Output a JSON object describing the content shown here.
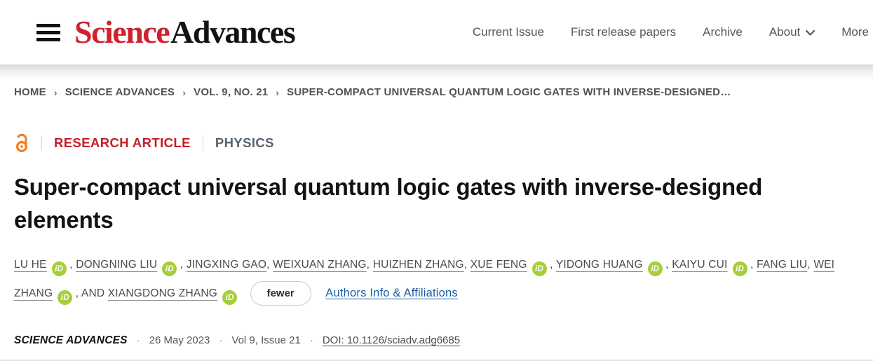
{
  "header": {
    "logo": {
      "science": "Science",
      "advances": "Advances"
    },
    "nav_items": [
      {
        "label": "Current Issue",
        "chevron": false
      },
      {
        "label": "First release papers",
        "chevron": false
      },
      {
        "label": "Archive",
        "chevron": false
      },
      {
        "label": "About",
        "chevron": true
      },
      {
        "label": "More",
        "chevron": false
      }
    ]
  },
  "breadcrumb": {
    "separator": "›",
    "items": [
      "HOME",
      "SCIENCE ADVANCES",
      "VOL. 9, NO. 21",
      "SUPER-COMPACT UNIVERSAL QUANTUM LOGIC GATES WITH INVERSE-DESIGNED…"
    ]
  },
  "article": {
    "type_label": "RESEARCH ARTICLE",
    "subject_label": "PHYSICS",
    "title": "Super-compact universal quantum logic gates with inverse-designed elements",
    "and_label": "AND",
    "orcid_icon_text": "iD",
    "authors": [
      {
        "name": "LU HE",
        "orcid": true
      },
      {
        "name": "DONGNING LIU",
        "orcid": true
      },
      {
        "name": "JINGXING GAO",
        "orcid": false
      },
      {
        "name": "WEIXUAN ZHANG",
        "orcid": false
      },
      {
        "name": "HUIZHEN ZHANG",
        "orcid": false
      },
      {
        "name": "XUE FENG",
        "orcid": true
      },
      {
        "name": "YIDONG HUANG",
        "orcid": true
      },
      {
        "name": "KAIYU CUI",
        "orcid": true
      },
      {
        "name": "FANG LIU",
        "orcid": false
      },
      {
        "name": "WEI ZHANG",
        "orcid": true
      },
      {
        "name": "XIANGDONG ZHANG",
        "orcid": true
      }
    ],
    "fewer_label": "fewer",
    "affiliations_link": "Authors Info & Affiliations"
  },
  "citation": {
    "journal": "SCIENCE ADVANCES",
    "separator": "·",
    "date": "26 May 2023",
    "issue": "Vol 9, Issue 21",
    "doi": "DOI: 10.1126/sciadv.adg6685"
  },
  "colors": {
    "brand_red": "#d02130",
    "research_article_red": "#c32028",
    "physics_gray": "#57636e",
    "nav_gray": "#55565a",
    "orcid_green": "#a6ce39",
    "open_access_orange": "#f47d20",
    "link_blue": "#1b5ca6",
    "author_gray": "#4b4b4b",
    "title_dark": "#131313"
  }
}
